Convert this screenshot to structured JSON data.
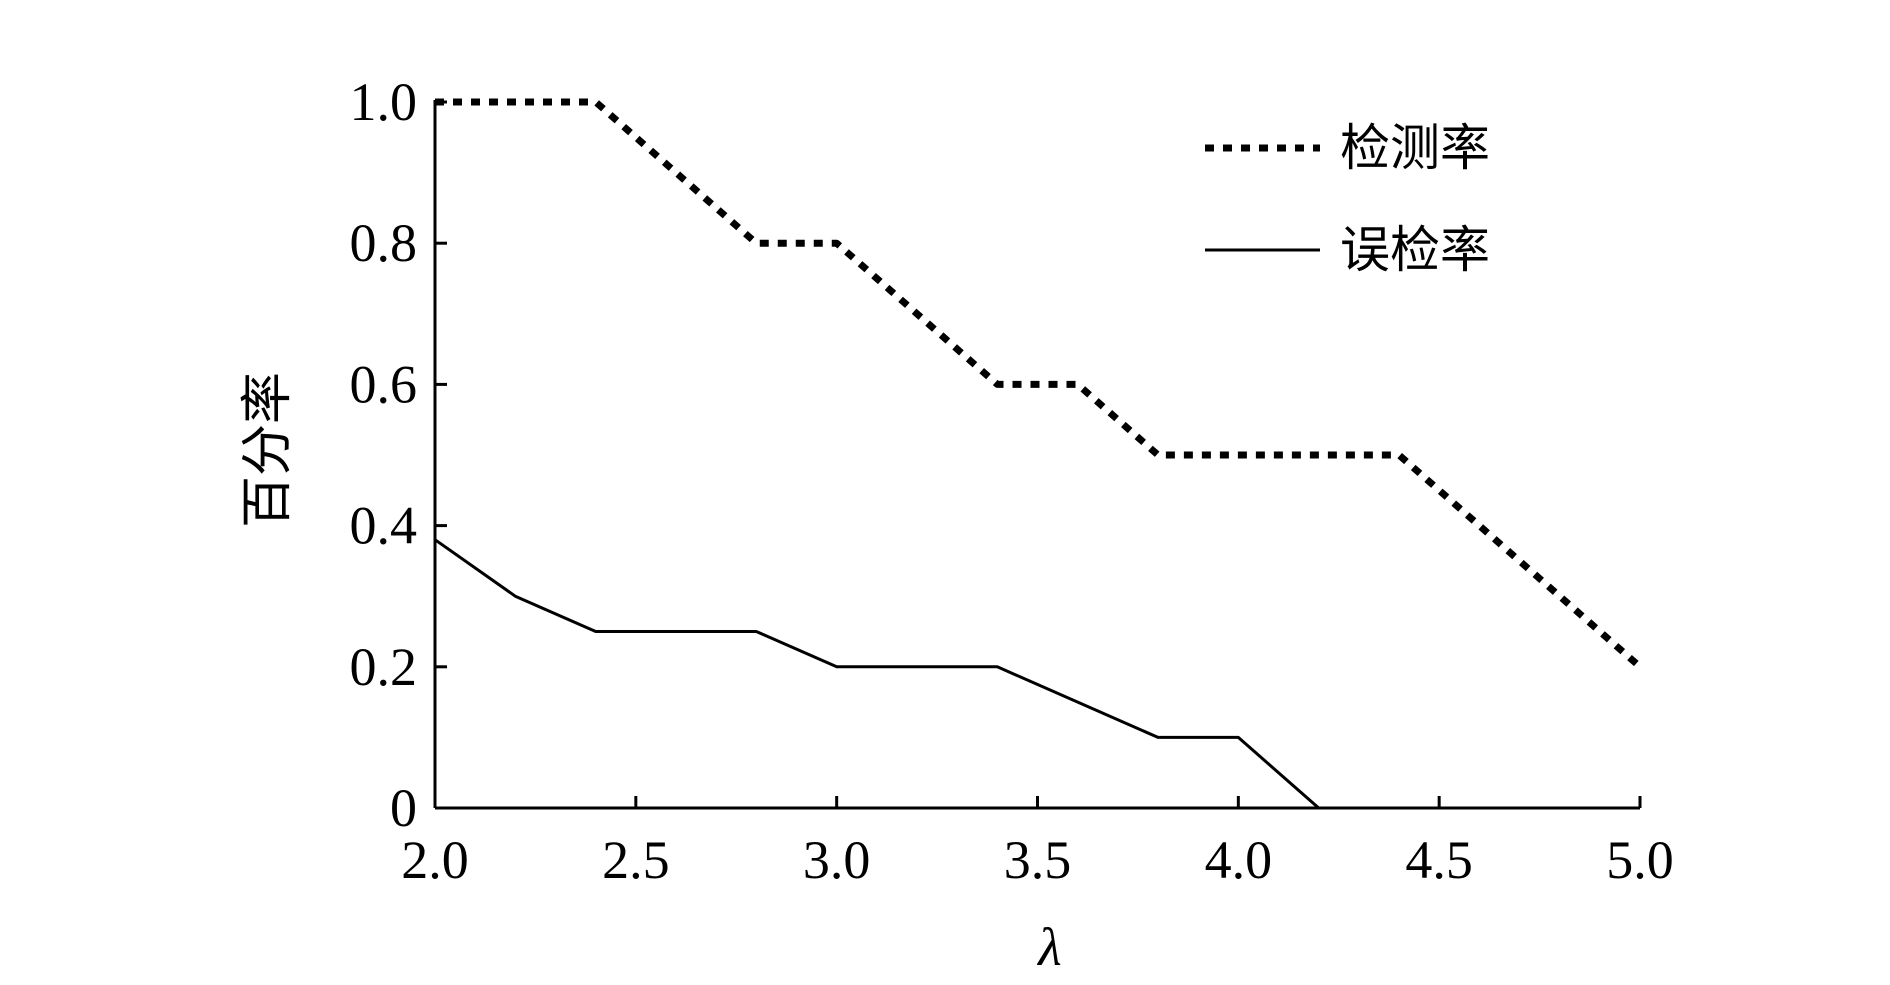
{
  "chart_data": {
    "type": "line",
    "xlabel": "λ",
    "ylabel": "百分率",
    "xlim": [
      2.0,
      5.0
    ],
    "ylim": [
      0,
      1.0
    ],
    "xticks": [
      "2.0",
      "2.5",
      "3.0",
      "3.5",
      "4.0",
      "4.5",
      "5.0"
    ],
    "yticks": [
      "0",
      "0.2",
      "0.4",
      "0.6",
      "0.8",
      "1.0"
    ],
    "grid": false,
    "legend_position": "top-right",
    "series": [
      {
        "name": "检测率",
        "style": "dotted",
        "color": "#000000",
        "x": [
          2.0,
          2.4,
          2.8,
          3.0,
          3.4,
          3.6,
          3.8,
          4.4,
          5.0
        ],
        "y": [
          1.0,
          1.0,
          0.8,
          0.8,
          0.6,
          0.6,
          0.5,
          0.5,
          0.2
        ]
      },
      {
        "name": "误检率",
        "style": "solid",
        "color": "#000000",
        "x": [
          2.0,
          2.2,
          2.4,
          2.8,
          3.0,
          3.4,
          3.8,
          4.0,
          4.2,
          5.0
        ],
        "y": [
          0.38,
          0.3,
          0.25,
          0.25,
          0.2,
          0.2,
          0.1,
          0.1,
          0.0,
          0.0
        ]
      }
    ]
  }
}
